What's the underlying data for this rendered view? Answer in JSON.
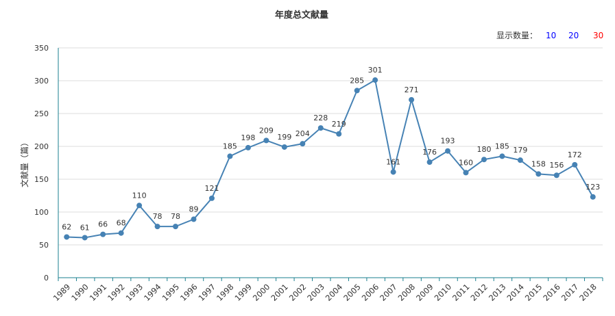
{
  "chart_data": {
    "type": "line",
    "title": "年度总文献量",
    "ylabel": "文献量（篇）",
    "xlabel": "",
    "categories": [
      "1989",
      "1990",
      "1991",
      "1992",
      "1993",
      "1994",
      "1995",
      "1996",
      "1997",
      "1998",
      "1999",
      "2000",
      "2001",
      "2002",
      "2003",
      "2004",
      "2005",
      "2006",
      "2007",
      "2008",
      "2009",
      "2010",
      "2011",
      "2012",
      "2013",
      "2014",
      "2015",
      "2016",
      "2017",
      "2018"
    ],
    "values": [
      62,
      61,
      66,
      68,
      110,
      78,
      78,
      89,
      121,
      185,
      198,
      209,
      199,
      204,
      228,
      219,
      285,
      301,
      161,
      271,
      176,
      193,
      160,
      180,
      185,
      179,
      158,
      156,
      172,
      123
    ],
    "ylim": [
      0,
      350
    ],
    "yticks": [
      0,
      50,
      100,
      150,
      200,
      250,
      300,
      350
    ],
    "grid": true,
    "legend": "none",
    "line_color": "#4682b4"
  },
  "controls": {
    "label": "显示数量：",
    "options": [
      {
        "label": "10",
        "color": "#0000ff"
      },
      {
        "label": "20",
        "color": "#0000ff"
      },
      {
        "label": "30",
        "color": "#ff0000"
      }
    ]
  }
}
